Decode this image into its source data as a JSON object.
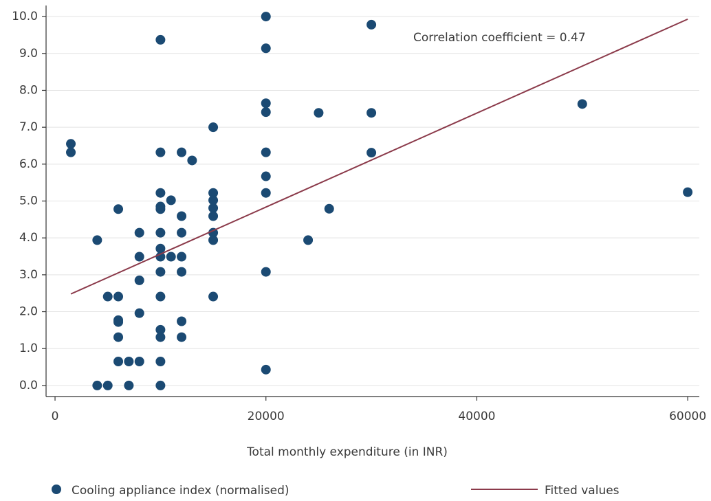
{
  "chart_data": {
    "type": "scatter",
    "annotation": "Correlation coefficient = 0.47",
    "x_label": "Total monthly expenditure (in INR)",
    "xlim": [
      -850,
      61100
    ],
    "ylim": [
      -0.3,
      10.3
    ],
    "xticks": [
      0,
      20000,
      40000,
      60000
    ],
    "yticks": [
      {
        "value": 0,
        "label": "0.0"
      },
      {
        "value": 1,
        "label": "1.0"
      },
      {
        "value": 2,
        "label": "2.0"
      },
      {
        "value": 3,
        "label": "3.0"
      },
      {
        "value": 4,
        "label": "4.0"
      },
      {
        "value": 5,
        "label": "5.0"
      },
      {
        "value": 6,
        "label": "6.0"
      },
      {
        "value": 7,
        "label": "7.0"
      },
      {
        "value": 8,
        "label": "8.0"
      },
      {
        "value": 9,
        "label": "9.0"
      },
      {
        "value": 10,
        "label": "10.0"
      }
    ],
    "grid": true,
    "series": [
      {
        "name": "Cooling appliance index (normalised)",
        "type": "scatter",
        "color": "#1b4a73",
        "x": [
          1500,
          1500,
          4000,
          4000,
          5000,
          5000,
          6000,
          6000,
          6000,
          6000,
          6000,
          6000,
          7000,
          7000,
          8000,
          8000,
          8000,
          8000,
          8000,
          10000,
          10000,
          10000,
          10000,
          10000,
          10000,
          10000,
          10000,
          10000,
          10000,
          10000,
          10000,
          10000,
          10000,
          11000,
          11000,
          12000,
          12000,
          12000,
          12000,
          12000,
          12000,
          12000,
          13000,
          15000,
          15000,
          15000,
          15000,
          15000,
          15000,
          15000,
          15000,
          20000,
          20000,
          20000,
          20000,
          20000,
          20000,
          20000,
          20000,
          20000,
          24000,
          25000,
          26000,
          30000,
          30000,
          30000,
          50000,
          60000
        ],
        "values": [
          6.55,
          6.32,
          3.94,
          0,
          0,
          2.41,
          2.41,
          4.78,
          1.77,
          1.72,
          1.31,
          0.65,
          0.65,
          0,
          0.65,
          1.96,
          2.85,
          3.49,
          4.14,
          9.37,
          6.32,
          5.22,
          4.85,
          4.78,
          4.14,
          3.71,
          3.49,
          3.08,
          2.41,
          1.51,
          1.31,
          0.65,
          0,
          5.02,
          3.49,
          6.32,
          4.59,
          4.14,
          3.49,
          3.08,
          1.74,
          1.31,
          6.1,
          7.0,
          5.22,
          5.02,
          4.81,
          4.59,
          4.14,
          3.94,
          2.41,
          10.0,
          9.14,
          7.65,
          7.41,
          6.32,
          5.67,
          5.22,
          3.08,
          0.43,
          3.94,
          7.39,
          4.79,
          9.78,
          7.39,
          6.31,
          7.63,
          5.24
        ]
      },
      {
        "name": "Fitted values",
        "type": "line",
        "color": "#8b3a4a",
        "x": [
          1500,
          60000
        ],
        "values": [
          2.48,
          9.93
        ]
      }
    ]
  }
}
